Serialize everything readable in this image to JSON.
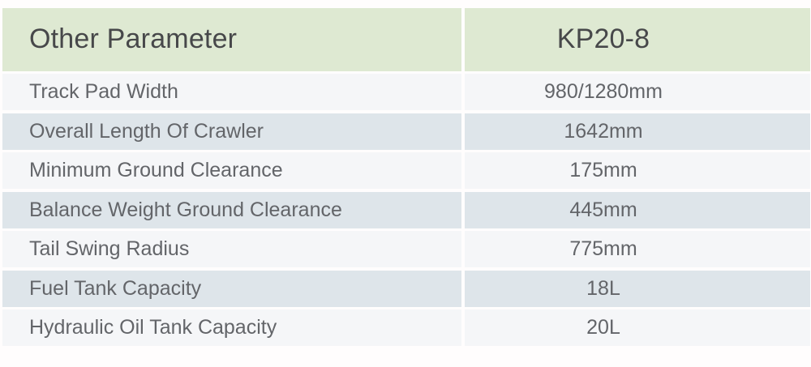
{
  "table": {
    "header": {
      "parameter_label": "Other Parameter",
      "model_label": "KP20-8"
    },
    "rows": [
      {
        "label": "Track Pad Width",
        "value": "980/1280mm"
      },
      {
        "label": "Overall Length Of Crawler",
        "value": "1642mm"
      },
      {
        "label": "Minimum Ground Clearance",
        "value": "175mm"
      },
      {
        "label": "Balance Weight Ground Clearance",
        "value": "445mm"
      },
      {
        "label": "Tail Swing Radius",
        "value": "775mm"
      },
      {
        "label": "Fuel Tank Capacity",
        "value": "18L"
      },
      {
        "label": "Hydraulic Oil Tank Capacity",
        "value": "20L"
      }
    ],
    "colors": {
      "header_bg": "#dee9d2",
      "row_light_bg": "#f5f6f8",
      "row_dark_bg": "#dee5ea",
      "header_text": "#47484a",
      "body_text": "#636569",
      "page_bg": "#fffdfd"
    }
  }
}
